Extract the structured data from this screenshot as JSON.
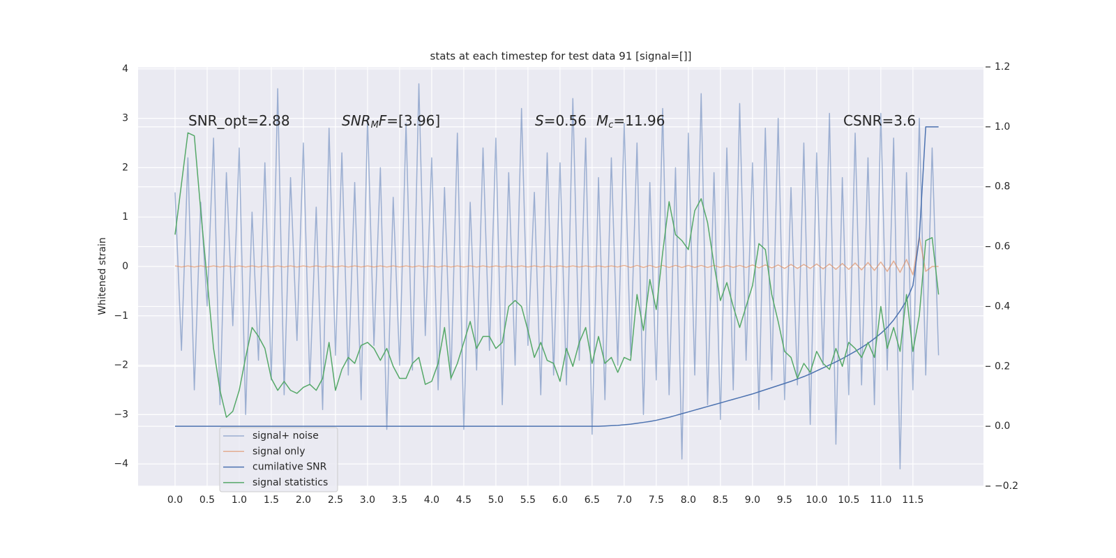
{
  "chart_data": {
    "type": "line",
    "title": "stats at each timestep for test data 91 [signal=[]]",
    "y_label": "Whitened strain",
    "annotations": [
      [
        "SNR_opt=2.88"
      ],
      [
        "SNR",
        "M",
        "F",
        "=[3.96]"
      ],
      [
        "S",
        "=0.56",
        "M",
        "c",
        "=11.96"
      ],
      [
        "CSNR=3.6"
      ]
    ],
    "xlim": [
      -0.576,
      12.6
    ],
    "ylim": [
      -4.45,
      4.04
    ],
    "y2lim": [
      -0.2,
      1.2
    ],
    "xticks": [
      {
        "value": 0,
        "label": "0.0"
      },
      0.5,
      {
        "value": 1,
        "label": "1.0"
      },
      1.5,
      {
        "value": 2,
        "label": "2.0"
      },
      2.5,
      {
        "value": 3,
        "label": "3.0"
      },
      3.5,
      {
        "value": 4,
        "label": "4.0"
      },
      4.5,
      {
        "value": 5,
        "label": "5.0"
      },
      5.5,
      {
        "value": 6,
        "label": "6.0"
      },
      6.5,
      {
        "value": 7,
        "label": "7.0"
      },
      7.5,
      {
        "value": 8,
        "label": "8.0"
      },
      8.5,
      {
        "value": 9,
        "label": "9.0"
      },
      9.5,
      {
        "value": 10,
        "label": "10.0"
      },
      10.5,
      {
        "value": 11,
        "label": "11.0"
      },
      11.5
    ],
    "yticks": [
      {
        "value": -4,
        "label": "−4"
      },
      {
        "value": -3,
        "label": "−3"
      },
      {
        "value": -2,
        "label": "−2"
      },
      {
        "value": -1,
        "label": "−1"
      },
      0,
      1,
      2,
      3,
      4
    ],
    "y2ticks": [
      {
        "value": -0.2,
        "label": "−0.2"
      },
      {
        "value": 0,
        "label": "0.0"
      },
      0.2,
      0.4,
      0.6,
      0.8,
      {
        "value": 1,
        "label": "1.0"
      },
      1.2
    ],
    "grid": true,
    "x": [
      0,
      0.1,
      0.2,
      0.3,
      0.4,
      0.5,
      0.6,
      0.7,
      0.8,
      0.9,
      1,
      1.1,
      1.2,
      1.3,
      1.4,
      1.5,
      1.6,
      1.7,
      1.8,
      1.9,
      2,
      2.1,
      2.2,
      2.3,
      2.4,
      2.5,
      2.6,
      2.7,
      2.8,
      2.9,
      3,
      3.1,
      3.2,
      3.3,
      3.4,
      3.5,
      3.6,
      3.7,
      3.8,
      3.9,
      4,
      4.1,
      4.2,
      4.3,
      4.4,
      4.5,
      4.6,
      4.7,
      4.8,
      4.9,
      5,
      5.1,
      5.2,
      5.3,
      5.4,
      5.5,
      5.6,
      5.7,
      5.8,
      5.9,
      6,
      6.1,
      6.2,
      6.3,
      6.4,
      6.5,
      6.6,
      6.7,
      6.8,
      6.9,
      7,
      7.1,
      7.2,
      7.3,
      7.4,
      7.5,
      7.6,
      7.7,
      7.8,
      7.9,
      8,
      8.1,
      8.2,
      8.3,
      8.4,
      8.5,
      8.6,
      8.7,
      8.8,
      8.9,
      9,
      9.1,
      9.2,
      9.3,
      9.4,
      9.5,
      9.6,
      9.7,
      9.8,
      9.9,
      10,
      10.1,
      10.2,
      10.3,
      10.4,
      10.5,
      10.6,
      10.7,
      10.8,
      10.9,
      11,
      11.1,
      11.2,
      11.3,
      11.4,
      11.5,
      11.6,
      11.7,
      11.8,
      11.9
    ],
    "series": [
      {
        "name": "signal+ noise",
        "color": "#4c72b0",
        "alpha": 0.5,
        "values": [
          1.5,
          -1.7,
          2.2,
          -2.5,
          1.3,
          -0.8,
          2.6,
          -2.8,
          1.9,
          -1.2,
          2.4,
          -3.0,
          1.1,
          -1.9,
          2.1,
          -2.3,
          3.6,
          -2.6,
          1.8,
          -1.5,
          2.5,
          -2.4,
          1.2,
          -2.9,
          2.8,
          -1.8,
          2.3,
          -2.2,
          1.7,
          -2.7,
          3.0,
          -1.6,
          2.0,
          -3.3,
          1.4,
          -2.0,
          2.9,
          -2.1,
          3.7,
          -1.4,
          2.2,
          -2.5,
          1.6,
          -2.3,
          2.7,
          -3.3,
          1.3,
          -2.1,
          2.4,
          -1.7,
          2.6,
          -2.8,
          1.9,
          -2.0,
          3.2,
          -1.6,
          1.5,
          -2.6,
          2.3,
          -2.2,
          2.1,
          -2.4,
          3.4,
          -1.9,
          2.6,
          -3.4,
          1.8,
          -2.7,
          2.2,
          -2.0,
          2.9,
          -1.8,
          2.5,
          -3.0,
          1.7,
          -2.3,
          3.2,
          -2.6,
          2.0,
          -3.9,
          2.7,
          -2.2,
          3.5,
          -2.8,
          1.9,
          -3.1,
          2.4,
          -2.5,
          3.3,
          -1.9,
          2.1,
          -2.9,
          2.8,
          -2.3,
          3.0,
          -2.7,
          1.6,
          -2.4,
          2.5,
          -3.2,
          2.3,
          -2.0,
          3.1,
          -3.6,
          1.8,
          -2.6,
          2.7,
          -2.4,
          2.2,
          -2.8,
          3.1,
          -2.1,
          2.6,
          -4.1,
          1.9,
          -2.5,
          3.0,
          -2.2,
          2.4,
          -1.8
        ]
      },
      {
        "name": "signal only",
        "color": "#dd8452",
        "alpha": 0.6,
        "values": [
          0.01,
          -0.01,
          0.01,
          -0.01,
          0.01,
          -0.01,
          0.01,
          -0.01,
          0.01,
          -0.01,
          0.01,
          -0.01,
          0.01,
          -0.01,
          0.01,
          -0.01,
          0.01,
          -0.01,
          0.01,
          -0.01,
          0.01,
          -0.01,
          0.01,
          -0.01,
          0.01,
          -0.01,
          0.01,
          -0.01,
          0.01,
          -0.01,
          0.01,
          -0.01,
          0.01,
          -0.01,
          0.01,
          -0.01,
          0.01,
          -0.01,
          0.01,
          -0.01,
          0.01,
          -0.01,
          0.01,
          -0.01,
          0.01,
          -0.01,
          0.01,
          -0.01,
          0.01,
          -0.01,
          0.01,
          -0.01,
          0.01,
          -0.01,
          0.01,
          -0.01,
          0.01,
          -0.01,
          0.01,
          -0.01,
          0.01,
          -0.01,
          0.01,
          -0.01,
          0.01,
          -0.01,
          0.01,
          -0.01,
          0.01,
          -0.01,
          0.02,
          -0.02,
          0.02,
          -0.02,
          0.02,
          -0.02,
          0.02,
          -0.02,
          0.02,
          -0.02,
          0.02,
          -0.02,
          0.02,
          -0.02,
          0.02,
          -0.02,
          0.02,
          -0.02,
          0.02,
          -0.02,
          0.03,
          -0.03,
          0.03,
          -0.03,
          0.03,
          -0.04,
          0.04,
          -0.04,
          0.04,
          -0.04,
          0.05,
          -0.05,
          0.05,
          -0.06,
          0.06,
          -0.06,
          0.07,
          -0.07,
          0.08,
          -0.08,
          0.09,
          -0.1,
          0.11,
          -0.12,
          0.14,
          -0.17,
          0.6,
          -0.1,
          0,
          0
        ]
      },
      {
        "name": "cumilative SNR",
        "color": "#4c72b0",
        "axis": "y2",
        "values": [
          0,
          0,
          0,
          0,
          0,
          0,
          0,
          0,
          0,
          0,
          0,
          0,
          0,
          0,
          0,
          0,
          0,
          0,
          0,
          0,
          0,
          0,
          0,
          0,
          0,
          0,
          0,
          0,
          0,
          0,
          0,
          0,
          0,
          0,
          0,
          0,
          0,
          0,
          0,
          0,
          0,
          0,
          0,
          0,
          0,
          0,
          0,
          0,
          0,
          0,
          0,
          0,
          0,
          0,
          0,
          0,
          0,
          0,
          0,
          0,
          0,
          0,
          0,
          0,
          0,
          0,
          0,
          0.001,
          0.002,
          0.003,
          0.005,
          0.007,
          0.01,
          0.013,
          0.016,
          0.02,
          0.025,
          0.03,
          0.036,
          0.042,
          0.048,
          0.054,
          0.06,
          0.066,
          0.072,
          0.078,
          0.084,
          0.09,
          0.096,
          0.102,
          0.108,
          0.115,
          0.122,
          0.129,
          0.136,
          0.143,
          0.15,
          0.158,
          0.166,
          0.175,
          0.185,
          0.195,
          0.205,
          0.215,
          0.226,
          0.238,
          0.25,
          0.263,
          0.277,
          0.293,
          0.31,
          0.33,
          0.355,
          0.385,
          0.42,
          0.47,
          0.63,
          1.0,
          1.0,
          1.0
        ]
      },
      {
        "name": "signal statistics",
        "color": "#55a868",
        "axis": "y2",
        "values": [
          0.64,
          0.81,
          0.98,
          0.97,
          0.72,
          0.49,
          0.26,
          0.12,
          0.03,
          0.05,
          0.12,
          0.23,
          0.33,
          0.3,
          0.26,
          0.16,
          0.12,
          0.15,
          0.12,
          0.11,
          0.13,
          0.14,
          0.12,
          0.16,
          0.28,
          0.12,
          0.19,
          0.23,
          0.21,
          0.27,
          0.28,
          0.26,
          0.22,
          0.26,
          0.2,
          0.16,
          0.16,
          0.21,
          0.23,
          0.14,
          0.15,
          0.21,
          0.33,
          0.16,
          0.21,
          0.28,
          0.35,
          0.26,
          0.3,
          0.3,
          0.26,
          0.28,
          0.4,
          0.42,
          0.4,
          0.32,
          0.23,
          0.28,
          0.22,
          0.21,
          0.15,
          0.26,
          0.2,
          0.28,
          0.33,
          0.21,
          0.3,
          0.21,
          0.23,
          0.18,
          0.23,
          0.22,
          0.44,
          0.32,
          0.49,
          0.39,
          0.58,
          0.75,
          0.64,
          0.62,
          0.59,
          0.72,
          0.76,
          0.68,
          0.54,
          0.42,
          0.48,
          0.4,
          0.33,
          0.4,
          0.47,
          0.61,
          0.59,
          0.44,
          0.35,
          0.25,
          0.23,
          0.16,
          0.21,
          0.18,
          0.25,
          0.21,
          0.19,
          0.26,
          0.2,
          0.28,
          0.26,
          0.23,
          0.28,
          0.23,
          0.4,
          0.26,
          0.33,
          0.25,
          0.44,
          0.25,
          0.37,
          0.62,
          0.63,
          0.44
        ]
      }
    ]
  }
}
